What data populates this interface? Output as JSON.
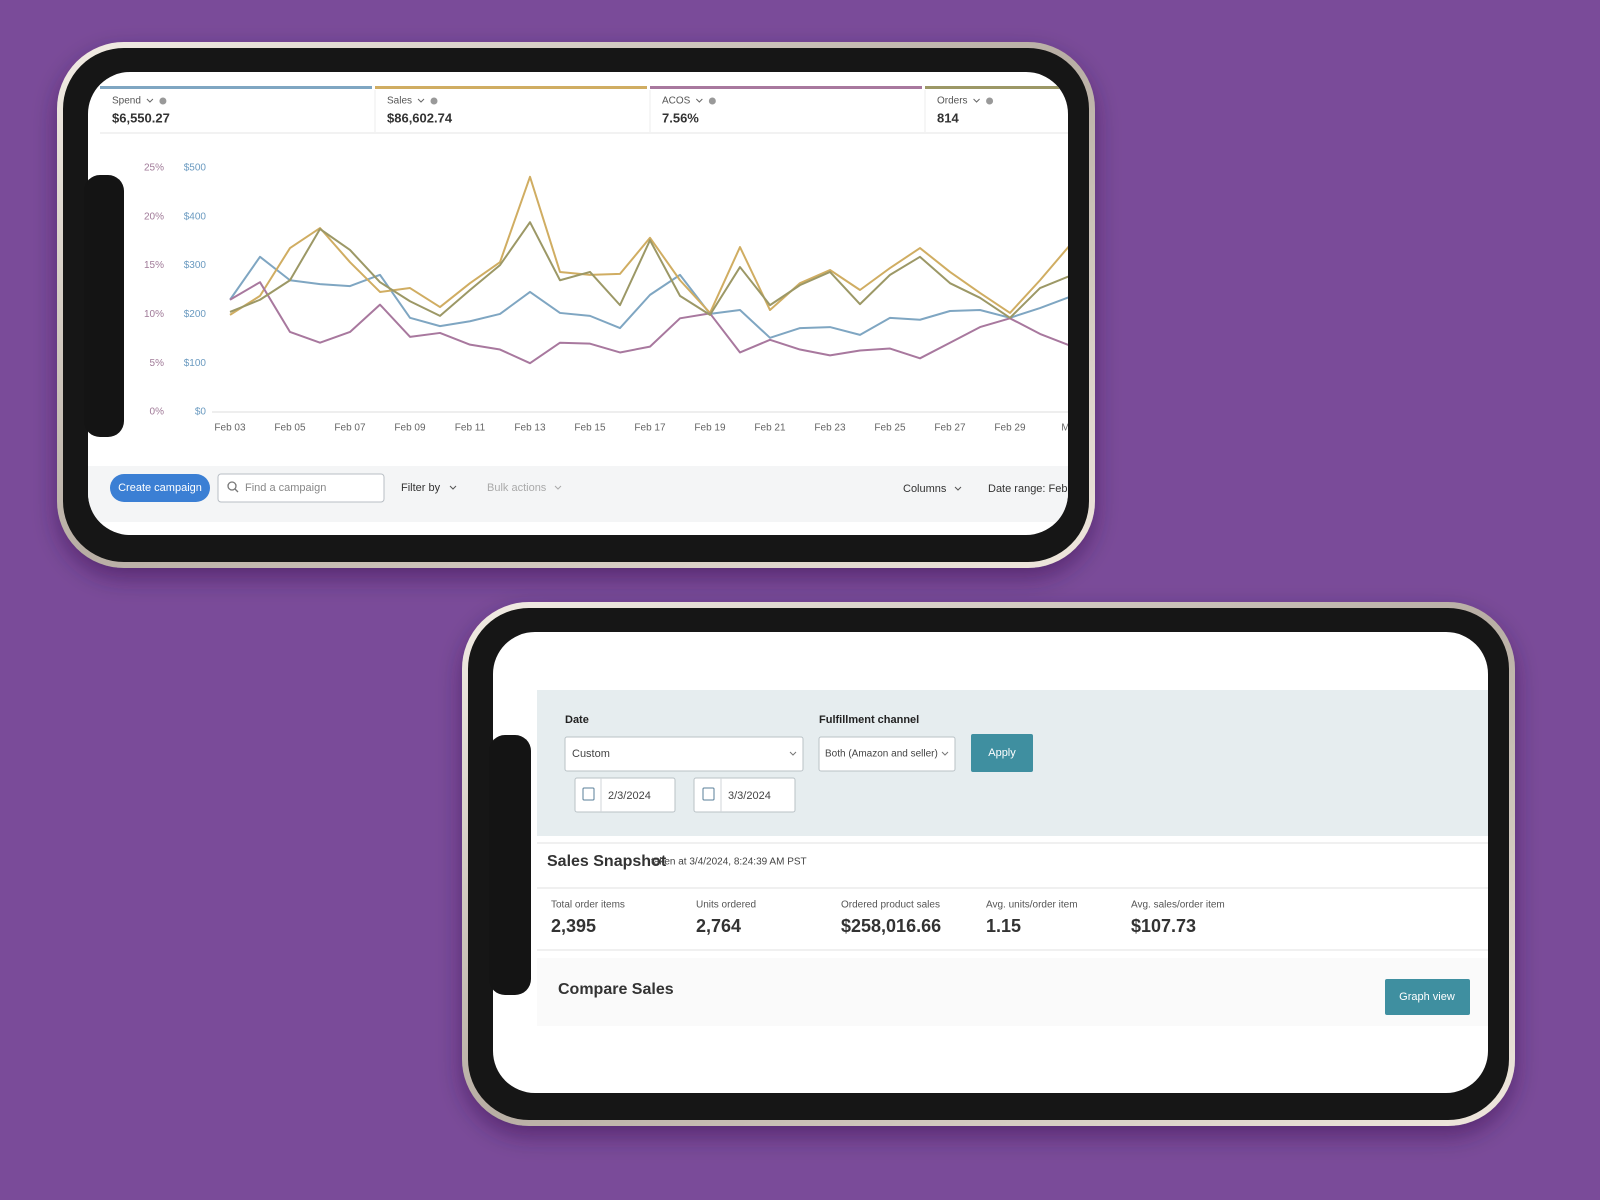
{
  "campaign_manager": {
    "metric_values": [
      "$6,550.27",
      "$86,602.74",
      "7.56%",
      "814"
    ],
    "toolbar": {
      "create_button": "Create campaign",
      "search_placeholder": "Find a campaign",
      "filter": "Filter by",
      "bulk_actions": "Bulk actions",
      "columns": "Columns",
      "date_range": "Date range: Feb"
    }
  },
  "chart_data": {
    "type": "line",
    "categories": [
      "Feb 03",
      null,
      "Feb 05",
      null,
      "Feb 07",
      null,
      "Feb 09",
      null,
      "Feb 11",
      null,
      "Feb 13",
      null,
      "Feb 15",
      null,
      "Feb 17",
      null,
      "Feb 19",
      null,
      "Feb 21",
      null,
      "Feb 23",
      null,
      "Feb 25",
      null,
      "Feb 27",
      null,
      "Feb 29",
      null,
      "Mar"
    ],
    "ylim": [
      0,
      25
    ],
    "yticks": [
      {
        "value": 0,
        "label": "0%"
      },
      {
        "value": 5,
        "label": "5%"
      },
      {
        "value": 10,
        "label": "10%"
      },
      {
        "value": 15,
        "label": "15%"
      },
      {
        "value": 20,
        "label": "20%"
      },
      {
        "value": 25,
        "label": "25%"
      }
    ],
    "y2lim": [
      0,
      500
    ],
    "y2ticks": [
      {
        "value": 0,
        "label": "$0"
      },
      {
        "value": 100,
        "label": "$100"
      },
      {
        "value": 200,
        "label": "$200"
      },
      {
        "value": 300,
        "label": "$300"
      },
      {
        "value": 400,
        "label": "$400"
      },
      {
        "value": 500,
        "label": "$500"
      }
    ],
    "series": [
      {
        "name": "Spend",
        "color": "#7fa6c2",
        "axis": "y2",
        "values": [
          230,
          318,
          270,
          262,
          258,
          281,
          193,
          176,
          186,
          201,
          246,
          203,
          197,
          172,
          240,
          281,
          201,
          209,
          152,
          172,
          174,
          158,
          193,
          189,
          207,
          209,
          193,
          213,
          236
        ]
      },
      {
        "name": "Sales",
        "color": "#d0ad62",
        "axis": "y2",
        "values": [
          199,
          238,
          336,
          377,
          307,
          246,
          254,
          215,
          264,
          307,
          482,
          287,
          281,
          283,
          357,
          270,
          203,
          338,
          209,
          264,
          291,
          250,
          295,
          336,
          287,
          244,
          203,
          270,
          342
        ]
      },
      {
        "name": "ACOS",
        "color": "#a8789e",
        "values": [
          11.5,
          13.3,
          8.2,
          7.1,
          8.2,
          11.0,
          7.7,
          8.1,
          6.9,
          6.4,
          5.0,
          7.1,
          7.0,
          6.1,
          6.7,
          9.6,
          10.1,
          6.1,
          7.4,
          6.4,
          5.8,
          6.3,
          6.5,
          5.5,
          7.1,
          8.7,
          9.6,
          8.0,
          6.8
        ]
      },
      {
        "name": "Orders",
        "color": "#9c9866",
        "axis": "y2",
        "values": [
          205,
          230,
          270,
          375,
          332,
          266,
          227,
          197,
          250,
          301,
          389,
          270,
          287,
          219,
          352,
          238,
          199,
          297,
          219,
          260,
          287,
          221,
          281,
          318,
          264,
          234,
          193,
          254,
          279
        ]
      }
    ]
  },
  "business_report": {
    "date_label": "Date",
    "date_select": "Custom",
    "start_date": "2/3/2024",
    "end_date": "3/3/2024",
    "fulfillment_label": "Fulfillment channel",
    "fulfillment_select": "Both (Amazon and seller)",
    "apply": "Apply",
    "snapshot_title": "Sales Snapshot",
    "snapshot_time": "taken at 3/4/2024, 8:24:39 AM PST",
    "snapshot": [
      {
        "label": "Total order items",
        "value": "2,395"
      },
      {
        "label": "Units ordered",
        "value": "2,764"
      },
      {
        "label": "Ordered product sales",
        "value": "$258,016.66"
      },
      {
        "label": "Avg. units/order item",
        "value": "1.15"
      },
      {
        "label": "Avg. sales/order item",
        "value": "$107.73"
      }
    ],
    "compare_title": "Compare Sales",
    "graph_view": "Graph view"
  }
}
